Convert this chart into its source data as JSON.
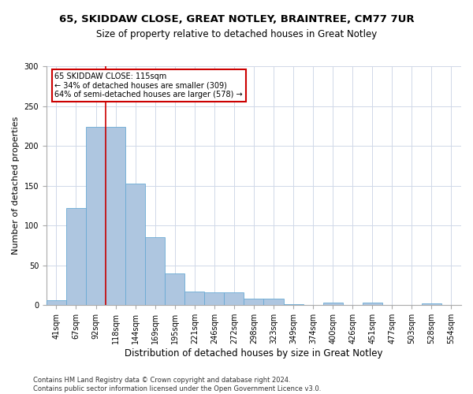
{
  "title_line1": "65, SKIDDAW CLOSE, GREAT NOTLEY, BRAINTREE, CM77 7UR",
  "title_line2": "Size of property relative to detached houses in Great Notley",
  "xlabel": "Distribution of detached houses by size in Great Notley",
  "ylabel": "Number of detached properties",
  "bar_categories": [
    "41sqm",
    "67sqm",
    "92sqm",
    "118sqm",
    "144sqm",
    "169sqm",
    "195sqm",
    "221sqm",
    "246sqm",
    "272sqm",
    "298sqm",
    "323sqm",
    "349sqm",
    "374sqm",
    "400sqm",
    "426sqm",
    "451sqm",
    "477sqm",
    "503sqm",
    "528sqm",
    "554sqm"
  ],
  "bar_values": [
    6,
    122,
    224,
    224,
    153,
    85,
    40,
    17,
    16,
    16,
    8,
    8,
    1,
    0,
    3,
    0,
    3,
    0,
    0,
    2,
    0
  ],
  "bar_color": "#aec6e0",
  "bar_edge_color": "#6aaad4",
  "annotation_text_line1": "65 SKIDDAW CLOSE: 115sqm",
  "annotation_text_line2": "← 34% of detached houses are smaller (309)",
  "annotation_text_line3": "64% of semi-detached houses are larger (578) →",
  "annotation_box_color": "#ffffff",
  "annotation_box_edge_color": "#cc0000",
  "red_line_color": "#cc0000",
  "red_line_x": 2.5,
  "ylim": [
    0,
    300
  ],
  "yticks": [
    0,
    50,
    100,
    150,
    200,
    250,
    300
  ],
  "footer_line1": "Contains HM Land Registry data © Crown copyright and database right 2024.",
  "footer_line2": "Contains public sector information licensed under the Open Government Licence v3.0.",
  "background_color": "#ffffff",
  "grid_color": "#d0d8e8",
  "title1_fontsize": 9.5,
  "title2_fontsize": 8.5,
  "ylabel_fontsize": 8,
  "xlabel_fontsize": 8.5,
  "tick_fontsize": 7,
  "ann_fontsize": 7,
  "footer_fontsize": 6
}
